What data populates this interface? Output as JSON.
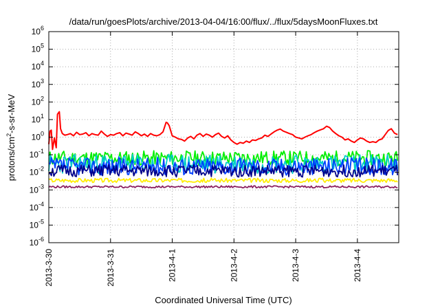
{
  "chart_data": {
    "type": "line",
    "title": "/data/run/goesPlots/archive/2013-04-04/16:00/flux/../flux/5daysMoonFluxes.txt",
    "xlabel": "Coordinated Universal Time (UTC)",
    "ylabel": {
      "base": "protons/cm",
      "sup": "2",
      "rest": "-s-sr-MeV"
    },
    "yscale": "log",
    "ylim": [
      1e-06,
      1000000
    ],
    "xlim": [
      0,
      5.67
    ],
    "grid": true,
    "legend": "none",
    "x_ticks": [
      {
        "label": "2013-3-30",
        "value": 0
      },
      {
        "label": "2013-3-31",
        "value": 1
      },
      {
        "label": "2013-4-1",
        "value": 2
      },
      {
        "label": "2013-4-2",
        "value": 3
      },
      {
        "label": "2013-4-3",
        "value": 4
      },
      {
        "label": "2013-4-4",
        "value": 5
      }
    ],
    "y_ticks": [
      {
        "base": "10",
        "exp": "-6",
        "value": 1e-06
      },
      {
        "base": "10",
        "exp": "-5",
        "value": 1e-05
      },
      {
        "base": "10",
        "exp": "-4",
        "value": 0.0001
      },
      {
        "base": "10",
        "exp": "-3",
        "value": 0.001
      },
      {
        "base": "10",
        "exp": "-2",
        "value": 0.01
      },
      {
        "base": "10",
        "exp": "-1",
        "value": 0.1
      },
      {
        "base": "10",
        "exp": "0",
        "value": 1
      },
      {
        "base": "10",
        "exp": "1",
        "value": 10
      },
      {
        "base": "10",
        "exp": "2",
        "value": 100
      },
      {
        "base": "10",
        "exp": "3",
        "value": 1000
      },
      {
        "base": "10",
        "exp": "4",
        "value": 10000
      },
      {
        "base": "10",
        "exp": "5",
        "value": 100000
      },
      {
        "base": "10",
        "exp": "6",
        "value": 1000000
      }
    ],
    "series": [
      {
        "color": "#ff0000",
        "x": [
          0,
          0.02,
          0.04,
          0.06,
          0.09,
          0.12,
          0.14,
          0.17,
          0.19,
          0.22,
          0.26,
          0.3,
          0.35,
          0.4,
          0.45,
          0.5,
          0.55,
          0.6,
          0.65,
          0.7,
          0.75,
          0.8,
          0.85,
          0.9,
          0.95,
          1.0,
          1.05,
          1.1,
          1.15,
          1.2,
          1.25,
          1.3,
          1.35,
          1.4,
          1.45,
          1.5,
          1.55,
          1.6,
          1.65,
          1.7,
          1.75,
          1.8,
          1.85,
          1.9,
          1.92,
          1.95,
          2.0,
          2.05,
          2.1,
          2.15,
          2.2,
          2.25,
          2.3,
          2.35,
          2.4,
          2.45,
          2.5,
          2.55,
          2.6,
          2.65,
          2.7,
          2.75,
          2.8,
          2.85,
          2.9,
          2.95,
          3.0,
          3.05,
          3.1,
          3.15,
          3.2,
          3.25,
          3.3,
          3.35,
          3.4,
          3.45,
          3.5,
          3.55,
          3.6,
          3.65,
          3.7,
          3.75,
          3.8,
          3.85,
          3.9,
          3.95,
          4.0,
          4.05,
          4.1,
          4.15,
          4.2,
          4.25,
          4.3,
          4.35,
          4.4,
          4.45,
          4.5,
          4.55,
          4.6,
          4.65,
          4.7,
          4.75,
          4.8,
          4.85,
          4.9,
          4.95,
          5.0,
          5.05,
          5.1,
          5.15,
          5.2,
          5.25,
          5.3,
          5.35,
          5.4,
          5.45,
          5.5,
          5.55,
          5.6,
          5.65
        ],
        "y": [
          0.4,
          2.2,
          2.5,
          0.2,
          0.9,
          0.25,
          20,
          28,
          3,
          1.6,
          1.3,
          1.4,
          1.6,
          1.2,
          1.9,
          1.4,
          1.5,
          1.8,
          1.2,
          1.6,
          1.4,
          1.3,
          2.2,
          1.5,
          1.1,
          1.4,
          1.3,
          1.6,
          1.8,
          1.2,
          1.7,
          1.5,
          1.3,
          2.0,
          1.6,
          1.2,
          1.5,
          1.1,
          1.6,
          1.3,
          1.2,
          1.4,
          2.0,
          7,
          6.5,
          4.5,
          1.2,
          1.0,
          0.8,
          0.75,
          0.6,
          0.9,
          1.1,
          0.8,
          1.3,
          1.6,
          1.1,
          1.5,
          1.3,
          1.0,
          1.4,
          1.7,
          1.1,
          0.9,
          1.2,
          0.7,
          0.5,
          0.4,
          0.5,
          0.45,
          0.6,
          0.5,
          0.7,
          0.65,
          0.8,
          0.9,
          1.3,
          1.1,
          1.5,
          2.0,
          2.5,
          2.9,
          2.2,
          1.9,
          1.6,
          1.4,
          1.0,
          0.9,
          0.8,
          1.0,
          1.2,
          1.4,
          1.8,
          2.2,
          2.6,
          3.0,
          4.2,
          3.5,
          2.2,
          1.6,
          1.2,
          1.0,
          0.7,
          0.8,
          0.6,
          0.5,
          0.7,
          0.9,
          0.8,
          0.6,
          0.5,
          0.55,
          0.5,
          0.7,
          0.8,
          1.4,
          2.4,
          3.0,
          1.7,
          1.4
        ]
      },
      {
        "color": "#00ee00",
        "base": 0.065,
        "spread": 0.42,
        "seed": 11,
        "x": [],
        "y": []
      },
      {
        "color": "#00cccc",
        "base": 0.03,
        "spread": 0.55,
        "seed": 23,
        "x": [],
        "y": []
      },
      {
        "color": "#0040ff",
        "base": 0.022,
        "spread": 0.5,
        "seed": 37,
        "x": [],
        "y": []
      },
      {
        "color": "#00008b",
        "base": 0.012,
        "spread": 0.35,
        "seed": 51,
        "x": [],
        "y": []
      },
      {
        "color": "#ffee00",
        "base": 0.0035,
        "spread": 0.12,
        "seed": 67,
        "x": [],
        "y": []
      },
      {
        "color": "#8b2060",
        "base": 0.0015,
        "spread": 0.06,
        "seed": 79,
        "x": [],
        "y": []
      }
    ]
  }
}
